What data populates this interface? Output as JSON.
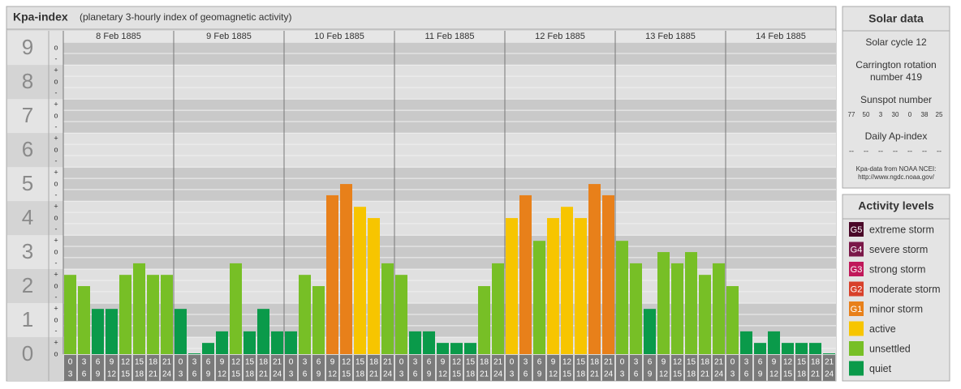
{
  "chart_data": {
    "type": "bar",
    "title": "Kpa-index",
    "subtitle": "(planetary 3-hourly index of geomagnetic activity)",
    "days": [
      {
        "date": "8 Feb 1885",
        "values": [
          2.33,
          2,
          1.33,
          1.33,
          2.33,
          2.67,
          2.33,
          2.33
        ],
        "colors": [
          "#77bf26",
          "#77bf26",
          "#0a9a4a",
          "#0a9a4a",
          "#77bf26",
          "#77bf26",
          "#77bf26",
          "#77bf26"
        ]
      },
      {
        "date": "9 Feb 1885",
        "values": [
          1.33,
          0,
          0.33,
          0.67,
          2.67,
          0.67,
          1.33,
          0.67
        ],
        "colors": [
          "#0a9a4a",
          "#0a9a4a",
          "#0a9a4a",
          "#0a9a4a",
          "#77bf26",
          "#0a9a4a",
          "#0a9a4a",
          "#0a9a4a"
        ]
      },
      {
        "date": "10 Feb 1885",
        "values": [
          0.67,
          2.33,
          2,
          4.67,
          5,
          4.33,
          4,
          2.67
        ],
        "colors": [
          "#0a9a4a",
          "#77bf26",
          "#77bf26",
          "#e8801a",
          "#e8801a",
          "#f7c500",
          "#f7c500",
          "#77bf26"
        ]
      },
      {
        "date": "11 Feb 1885",
        "values": [
          2.33,
          0.67,
          0.67,
          0.33,
          0.33,
          0.33,
          2,
          2.67
        ],
        "colors": [
          "#77bf26",
          "#0a9a4a",
          "#0a9a4a",
          "#0a9a4a",
          "#0a9a4a",
          "#0a9a4a",
          "#77bf26",
          "#77bf26"
        ]
      },
      {
        "date": "12 Feb 1885",
        "values": [
          4,
          4.67,
          3.33,
          4,
          4.33,
          4,
          5,
          4.67
        ],
        "colors": [
          "#f7c500",
          "#e8801a",
          "#77bf26",
          "#f7c500",
          "#f7c500",
          "#f7c500",
          "#e8801a",
          "#e8801a"
        ]
      },
      {
        "date": "13 Feb 1885",
        "values": [
          3.33,
          2.67,
          1.33,
          3,
          2.67,
          3,
          2.33,
          2.67
        ],
        "colors": [
          "#77bf26",
          "#77bf26",
          "#0a9a4a",
          "#77bf26",
          "#77bf26",
          "#77bf26",
          "#77bf26",
          "#77bf26"
        ]
      },
      {
        "date": "14 Feb 1885",
        "values": [
          2,
          0.67,
          0.33,
          0.67,
          0.33,
          0.33,
          0.33,
          0
        ],
        "colors": [
          "#77bf26",
          "#0a9a4a",
          "#0a9a4a",
          "#0a9a4a",
          "#0a9a4a",
          "#0a9a4a",
          "#0a9a4a",
          "#0a9a4a"
        ]
      }
    ],
    "hours": [
      [
        "0",
        "3"
      ],
      [
        "3",
        "6"
      ],
      [
        "6",
        "9"
      ],
      [
        "9",
        "12"
      ],
      [
        "12",
        "15"
      ],
      [
        "15",
        "18"
      ],
      [
        "18",
        "21"
      ],
      [
        "21",
        "24"
      ]
    ],
    "ylim": [
      0,
      9.17
    ],
    "yticks": [
      0,
      1,
      2,
      3,
      4,
      5,
      6,
      7,
      8,
      9
    ],
    "minor_ticks": [
      {
        "value": 0,
        "label": "o"
      },
      {
        "value": 0.33,
        "label": "+"
      },
      {
        "value": 0.67,
        "label": "-"
      },
      {
        "value": 1,
        "label": "o"
      },
      {
        "value": 1.33,
        "label": "+"
      },
      {
        "value": 1.67,
        "label": "-"
      },
      {
        "value": 2,
        "label": "o"
      },
      {
        "value": 2.33,
        "label": "+"
      },
      {
        "value": 2.67,
        "label": "-"
      },
      {
        "value": 3,
        "label": "o"
      },
      {
        "value": 3.33,
        "label": "+"
      },
      {
        "value": 3.67,
        "label": "-"
      },
      {
        "value": 4,
        "label": "o"
      },
      {
        "value": 4.33,
        "label": "+"
      },
      {
        "value": 4.67,
        "label": "-"
      },
      {
        "value": 5,
        "label": "o"
      },
      {
        "value": 5.33,
        "label": "+"
      },
      {
        "value": 5.67,
        "label": "-"
      },
      {
        "value": 6,
        "label": "o"
      },
      {
        "value": 6.33,
        "label": "+"
      },
      {
        "value": 6.67,
        "label": "-"
      },
      {
        "value": 7,
        "label": "o"
      },
      {
        "value": 7.33,
        "label": "+"
      },
      {
        "value": 7.67,
        "label": "-"
      },
      {
        "value": 8,
        "label": "o"
      },
      {
        "value": 8.33,
        "label": "+"
      },
      {
        "value": 8.67,
        "label": "-"
      },
      {
        "value": 9,
        "label": "o"
      }
    ],
    "grid": true
  },
  "solar_data": {
    "title": "Solar data",
    "cycle": "Solar cycle 12",
    "carrington": [
      "Carrington rotation",
      "number 419"
    ],
    "sunspot_title": "Sunspot number",
    "sunspots": [
      77,
      50,
      3,
      30,
      0,
      38,
      25
    ],
    "ap_title": "Daily Ap-index",
    "ap": [
      "--",
      "--",
      "--",
      "--",
      "--",
      "--",
      "--"
    ],
    "source": [
      "Kpa-data from NOAA NCEI:",
      "http://www.ngdc.noaa.gov/"
    ]
  },
  "activity_levels": {
    "title": "Activity levels",
    "items": [
      {
        "badge": "G5",
        "label": "extreme storm",
        "color": "#4a0828"
      },
      {
        "badge": "G4",
        "label": "severe storm",
        "color": "#7a1848"
      },
      {
        "badge": "G3",
        "label": "strong storm",
        "color": "#c0185a"
      },
      {
        "badge": "G2",
        "label": "moderate storm",
        "color": "#d8402a"
      },
      {
        "badge": "G1",
        "label": "minor storm",
        "color": "#e8801a"
      },
      {
        "label": "active",
        "color": "#f7c500"
      },
      {
        "label": "unsettled",
        "color": "#77bf26"
      },
      {
        "label": "quiet",
        "color": "#0a9a4a"
      }
    ]
  }
}
